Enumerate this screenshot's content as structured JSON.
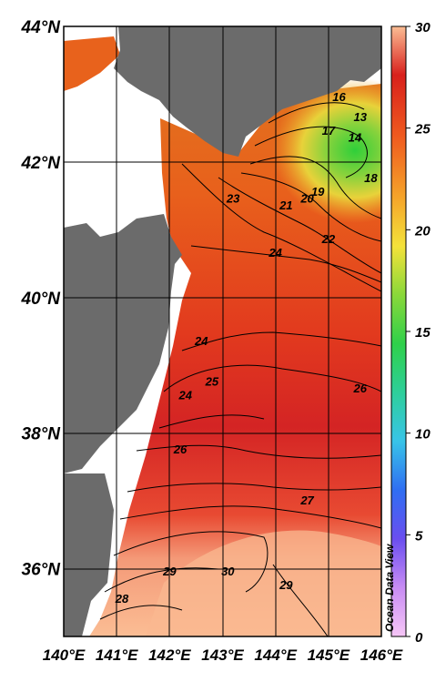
{
  "map": {
    "projection": "lat-lon",
    "lon_range": [
      140,
      146
    ],
    "lat_range": [
      35,
      44
    ],
    "grid": true,
    "land_color": "#6b6b6b",
    "lat_ticks": [
      {
        "value": 44,
        "label": "44°N"
      },
      {
        "value": 42,
        "label": "42°N"
      },
      {
        "value": 40,
        "label": "40°N"
      },
      {
        "value": 38,
        "label": "38°N"
      },
      {
        "value": 36,
        "label": "36°N"
      }
    ],
    "lon_ticks": [
      {
        "value": 140,
        "label": "140°E"
      },
      {
        "value": 141,
        "label": "141°E"
      },
      {
        "value": 142,
        "label": "142°E"
      },
      {
        "value": 143,
        "label": "143°E"
      },
      {
        "value": 144,
        "label": "144°E"
      },
      {
        "value": 145,
        "label": "145°E"
      },
      {
        "value": 146,
        "label": "146°E"
      }
    ],
    "contour_labels": [
      {
        "text": "16",
        "lon": 145.2,
        "lat": 42.9
      },
      {
        "text": "13",
        "lon": 145.6,
        "lat": 42.6
      },
      {
        "text": "17",
        "lon": 145.0,
        "lat": 42.4
      },
      {
        "text": "14",
        "lon": 145.5,
        "lat": 42.3
      },
      {
        "text": "18",
        "lon": 145.8,
        "lat": 41.7
      },
      {
        "text": "19",
        "lon": 144.8,
        "lat": 41.5
      },
      {
        "text": "20",
        "lon": 144.6,
        "lat": 41.4
      },
      {
        "text": "21",
        "lon": 144.2,
        "lat": 41.3
      },
      {
        "text": "23",
        "lon": 143.2,
        "lat": 41.4
      },
      {
        "text": "22",
        "lon": 145.0,
        "lat": 40.8
      },
      {
        "text": "24",
        "lon": 144.0,
        "lat": 40.6
      },
      {
        "text": "24",
        "lon": 142.6,
        "lat": 39.3
      },
      {
        "text": "25",
        "lon": 142.8,
        "lat": 38.7
      },
      {
        "text": "24",
        "lon": 142.3,
        "lat": 38.5
      },
      {
        "text": "26",
        "lon": 145.6,
        "lat": 38.6
      },
      {
        "text": "26",
        "lon": 142.2,
        "lat": 37.7
      },
      {
        "text": "27",
        "lon": 144.6,
        "lat": 36.95
      },
      {
        "text": "30",
        "lon": 143.1,
        "lat": 35.9
      },
      {
        "text": "29",
        "lon": 142.0,
        "lat": 35.9
      },
      {
        "text": "29",
        "lon": 144.2,
        "lat": 35.7
      },
      {
        "text": "28",
        "lon": 141.1,
        "lat": 35.5
      }
    ]
  },
  "colorbar": {
    "min": 0,
    "max": 30,
    "ticks": [
      0,
      5,
      10,
      15,
      20,
      25,
      30
    ],
    "tick_labels": [
      "0",
      "5",
      "10",
      "15",
      "20",
      "25",
      "30"
    ],
    "colors": [
      "#f4b8f4",
      "#c98cf4",
      "#6a4ef0",
      "#2f7ef2",
      "#38d4e4",
      "#2ecf8e",
      "#2fd04a",
      "#a8d838",
      "#f4e23a",
      "#f5a42a",
      "#ef5a1f",
      "#d8201c",
      "#fbbd94"
    ]
  },
  "credit": "Ocean Data View"
}
